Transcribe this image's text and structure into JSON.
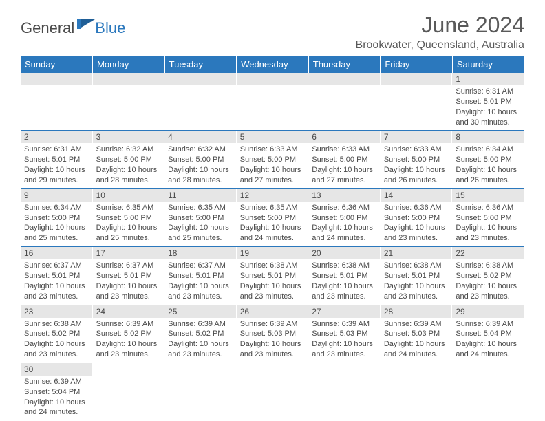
{
  "brand": {
    "part1": "General",
    "part2": "Blue"
  },
  "title": "June 2024",
  "location": "Brookwater, Queensland, Australia",
  "colors": {
    "header_bg": "#2b78bd",
    "header_text": "#ffffff",
    "daynum_bg": "#e6e6e6",
    "text": "#4a4a4a",
    "rule": "#2b78bd"
  },
  "weekdays": [
    "Sunday",
    "Monday",
    "Tuesday",
    "Wednesday",
    "Thursday",
    "Friday",
    "Saturday"
  ],
  "weeks": [
    [
      null,
      null,
      null,
      null,
      null,
      null,
      {
        "n": "1",
        "sr": "Sunrise: 6:31 AM",
        "ss": "Sunset: 5:01 PM",
        "d1": "Daylight: 10 hours",
        "d2": "and 30 minutes."
      }
    ],
    [
      {
        "n": "2",
        "sr": "Sunrise: 6:31 AM",
        "ss": "Sunset: 5:01 PM",
        "d1": "Daylight: 10 hours",
        "d2": "and 29 minutes."
      },
      {
        "n": "3",
        "sr": "Sunrise: 6:32 AM",
        "ss": "Sunset: 5:00 PM",
        "d1": "Daylight: 10 hours",
        "d2": "and 28 minutes."
      },
      {
        "n": "4",
        "sr": "Sunrise: 6:32 AM",
        "ss": "Sunset: 5:00 PM",
        "d1": "Daylight: 10 hours",
        "d2": "and 28 minutes."
      },
      {
        "n": "5",
        "sr": "Sunrise: 6:33 AM",
        "ss": "Sunset: 5:00 PM",
        "d1": "Daylight: 10 hours",
        "d2": "and 27 minutes."
      },
      {
        "n": "6",
        "sr": "Sunrise: 6:33 AM",
        "ss": "Sunset: 5:00 PM",
        "d1": "Daylight: 10 hours",
        "d2": "and 27 minutes."
      },
      {
        "n": "7",
        "sr": "Sunrise: 6:33 AM",
        "ss": "Sunset: 5:00 PM",
        "d1": "Daylight: 10 hours",
        "d2": "and 26 minutes."
      },
      {
        "n": "8",
        "sr": "Sunrise: 6:34 AM",
        "ss": "Sunset: 5:00 PM",
        "d1": "Daylight: 10 hours",
        "d2": "and 26 minutes."
      }
    ],
    [
      {
        "n": "9",
        "sr": "Sunrise: 6:34 AM",
        "ss": "Sunset: 5:00 PM",
        "d1": "Daylight: 10 hours",
        "d2": "and 25 minutes."
      },
      {
        "n": "10",
        "sr": "Sunrise: 6:35 AM",
        "ss": "Sunset: 5:00 PM",
        "d1": "Daylight: 10 hours",
        "d2": "and 25 minutes."
      },
      {
        "n": "11",
        "sr": "Sunrise: 6:35 AM",
        "ss": "Sunset: 5:00 PM",
        "d1": "Daylight: 10 hours",
        "d2": "and 25 minutes."
      },
      {
        "n": "12",
        "sr": "Sunrise: 6:35 AM",
        "ss": "Sunset: 5:00 PM",
        "d1": "Daylight: 10 hours",
        "d2": "and 24 minutes."
      },
      {
        "n": "13",
        "sr": "Sunrise: 6:36 AM",
        "ss": "Sunset: 5:00 PM",
        "d1": "Daylight: 10 hours",
        "d2": "and 24 minutes."
      },
      {
        "n": "14",
        "sr": "Sunrise: 6:36 AM",
        "ss": "Sunset: 5:00 PM",
        "d1": "Daylight: 10 hours",
        "d2": "and 23 minutes."
      },
      {
        "n": "15",
        "sr": "Sunrise: 6:36 AM",
        "ss": "Sunset: 5:00 PM",
        "d1": "Daylight: 10 hours",
        "d2": "and 23 minutes."
      }
    ],
    [
      {
        "n": "16",
        "sr": "Sunrise: 6:37 AM",
        "ss": "Sunset: 5:01 PM",
        "d1": "Daylight: 10 hours",
        "d2": "and 23 minutes."
      },
      {
        "n": "17",
        "sr": "Sunrise: 6:37 AM",
        "ss": "Sunset: 5:01 PM",
        "d1": "Daylight: 10 hours",
        "d2": "and 23 minutes."
      },
      {
        "n": "18",
        "sr": "Sunrise: 6:37 AM",
        "ss": "Sunset: 5:01 PM",
        "d1": "Daylight: 10 hours",
        "d2": "and 23 minutes."
      },
      {
        "n": "19",
        "sr": "Sunrise: 6:38 AM",
        "ss": "Sunset: 5:01 PM",
        "d1": "Daylight: 10 hours",
        "d2": "and 23 minutes."
      },
      {
        "n": "20",
        "sr": "Sunrise: 6:38 AM",
        "ss": "Sunset: 5:01 PM",
        "d1": "Daylight: 10 hours",
        "d2": "and 23 minutes."
      },
      {
        "n": "21",
        "sr": "Sunrise: 6:38 AM",
        "ss": "Sunset: 5:01 PM",
        "d1": "Daylight: 10 hours",
        "d2": "and 23 minutes."
      },
      {
        "n": "22",
        "sr": "Sunrise: 6:38 AM",
        "ss": "Sunset: 5:02 PM",
        "d1": "Daylight: 10 hours",
        "d2": "and 23 minutes."
      }
    ],
    [
      {
        "n": "23",
        "sr": "Sunrise: 6:38 AM",
        "ss": "Sunset: 5:02 PM",
        "d1": "Daylight: 10 hours",
        "d2": "and 23 minutes."
      },
      {
        "n": "24",
        "sr": "Sunrise: 6:39 AM",
        "ss": "Sunset: 5:02 PM",
        "d1": "Daylight: 10 hours",
        "d2": "and 23 minutes."
      },
      {
        "n": "25",
        "sr": "Sunrise: 6:39 AM",
        "ss": "Sunset: 5:02 PM",
        "d1": "Daylight: 10 hours",
        "d2": "and 23 minutes."
      },
      {
        "n": "26",
        "sr": "Sunrise: 6:39 AM",
        "ss": "Sunset: 5:03 PM",
        "d1": "Daylight: 10 hours",
        "d2": "and 23 minutes."
      },
      {
        "n": "27",
        "sr": "Sunrise: 6:39 AM",
        "ss": "Sunset: 5:03 PM",
        "d1": "Daylight: 10 hours",
        "d2": "and 23 minutes."
      },
      {
        "n": "28",
        "sr": "Sunrise: 6:39 AM",
        "ss": "Sunset: 5:03 PM",
        "d1": "Daylight: 10 hours",
        "d2": "and 24 minutes."
      },
      {
        "n": "29",
        "sr": "Sunrise: 6:39 AM",
        "ss": "Sunset: 5:04 PM",
        "d1": "Daylight: 10 hours",
        "d2": "and 24 minutes."
      }
    ],
    [
      {
        "n": "30",
        "sr": "Sunrise: 6:39 AM",
        "ss": "Sunset: 5:04 PM",
        "d1": "Daylight: 10 hours",
        "d2": "and 24 minutes."
      },
      null,
      null,
      null,
      null,
      null,
      null
    ]
  ]
}
